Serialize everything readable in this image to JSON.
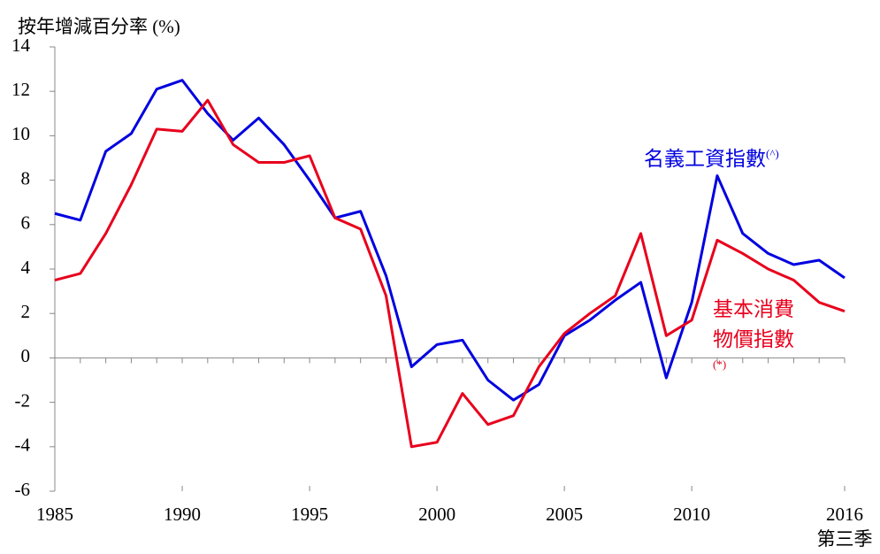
{
  "chart_data": {
    "type": "line",
    "y_axis_label": "按年增減百分率 (%)",
    "x": [
      1985,
      1986,
      1987,
      1988,
      1989,
      1990,
      1991,
      1992,
      1993,
      1994,
      1995,
      1996,
      1997,
      1998,
      1999,
      2000,
      2001,
      2002,
      2003,
      2004,
      2005,
      2006,
      2007,
      2008,
      2009,
      2010,
      2011,
      2012,
      2013,
      2014,
      2015,
      2016
    ],
    "x_note": "第三季",
    "series": [
      {
        "name": "名義工資指數",
        "marker": "(^)",
        "color": "#0000e0",
        "values": [
          6.5,
          6.2,
          9.3,
          10.1,
          12.1,
          12.5,
          11.0,
          9.8,
          10.8,
          9.6,
          8.0,
          6.3,
          6.6,
          3.7,
          -0.4,
          0.6,
          0.8,
          -1.0,
          -1.9,
          -1.2,
          1.0,
          1.7,
          2.6,
          3.4,
          -0.9,
          2.5,
          8.2,
          5.6,
          4.7,
          4.2,
          4.4,
          3.6
        ]
      },
      {
        "name": "基本消費物價指數",
        "marker": "(*)",
        "color": "#e8001c",
        "values": [
          3.5,
          3.8,
          5.6,
          7.8,
          10.3,
          10.2,
          11.6,
          9.6,
          8.8,
          8.8,
          9.1,
          6.3,
          5.8,
          2.8,
          -4.0,
          -3.8,
          -1.6,
          -3.0,
          -2.6,
          -0.4,
          1.1,
          2.0,
          2.8,
          5.6,
          1.0,
          1.7,
          5.3,
          4.7,
          4.0,
          3.5,
          2.5,
          2.1
        ]
      }
    ],
    "xlim": [
      1985,
      2016
    ],
    "xticks": [
      1985,
      1990,
      1995,
      2000,
      2005,
      2010,
      2016
    ],
    "ylim": [
      -6,
      14
    ],
    "yticks": [
      -6,
      -4,
      -2,
      0,
      2,
      4,
      6,
      8,
      10,
      12,
      14
    ],
    "grid": false
  }
}
